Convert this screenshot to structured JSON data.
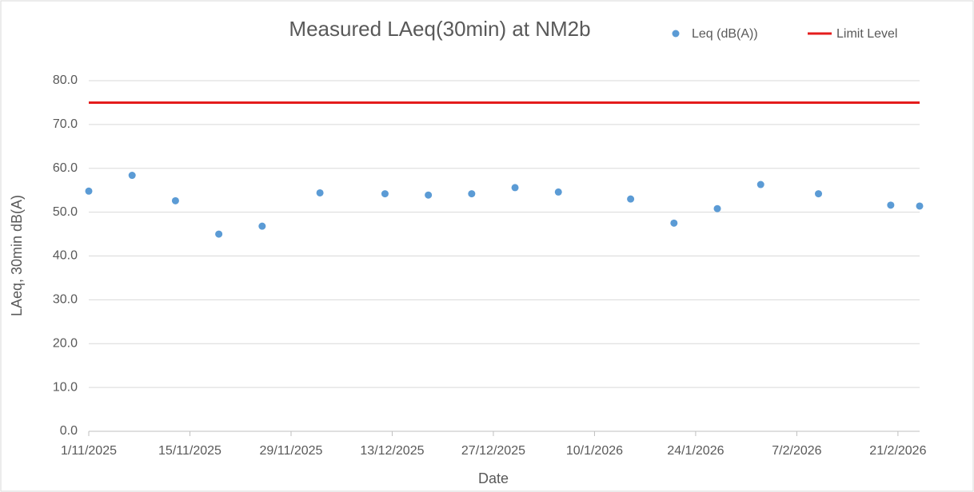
{
  "chart_data": {
    "type": "scatter",
    "title": "Measured LAeq(30min) at NM2b",
    "xlabel": "Date",
    "ylabel": "LAeq, 30min dB(A)",
    "xlim": [
      "2025-11-01",
      "2026-02-24"
    ],
    "xticks": [
      {
        "value": "2025-11-01",
        "label": "1/11/2025"
      },
      {
        "value": "2025-11-15",
        "label": "15/11/2025"
      },
      {
        "value": "2025-11-29",
        "label": "29/11/2025"
      },
      {
        "value": "2025-12-13",
        "label": "13/12/2025"
      },
      {
        "value": "2025-12-27",
        "label": "27/12/2025"
      },
      {
        "value": "2026-01-10",
        "label": "10/1/2026"
      },
      {
        "value": "2026-01-24",
        "label": "24/1/2026"
      },
      {
        "value": "2026-02-07",
        "label": "7/2/2026"
      },
      {
        "value": "2026-02-21",
        "label": "21/2/2026"
      }
    ],
    "ylim": [
      0,
      80
    ],
    "yticks": [
      {
        "value": 0,
        "label": "0.0"
      },
      {
        "value": 10,
        "label": "10.0"
      },
      {
        "value": 20,
        "label": "20.0"
      },
      {
        "value": 30,
        "label": "30.0"
      },
      {
        "value": 40,
        "label": "40.0"
      },
      {
        "value": 50,
        "label": "50.0"
      },
      {
        "value": 60,
        "label": "60.0"
      },
      {
        "value": 70,
        "label": "70.0"
      },
      {
        "value": 80,
        "label": "80.0"
      }
    ],
    "grid": true,
    "legend": "top-right",
    "series": [
      {
        "name": "Leq (dB(A))",
        "color": "#5b9bd5",
        "kind": "points",
        "x": [
          "2025-11-01",
          "2025-11-07",
          "2025-11-13",
          "2025-11-19",
          "2025-11-25",
          "2025-12-03",
          "2025-12-12",
          "2025-12-18",
          "2025-12-24",
          "2025-12-30",
          "2026-01-05",
          "2026-01-15",
          "2026-01-21",
          "2026-01-27",
          "2026-02-02",
          "2026-02-10",
          "2026-02-20",
          "2026-02-24"
        ],
        "values": [
          54.8,
          58.4,
          52.6,
          45.0,
          46.8,
          54.4,
          54.2,
          53.9,
          54.2,
          55.6,
          54.6,
          53.0,
          47.5,
          50.8,
          56.3,
          54.2,
          51.6,
          51.4
        ]
      },
      {
        "name": "Limit Level",
        "color": "#e41c1c",
        "kind": "line",
        "x": [
          "2025-11-01",
          "2026-02-24"
        ],
        "values": [
          75,
          75
        ]
      }
    ]
  }
}
